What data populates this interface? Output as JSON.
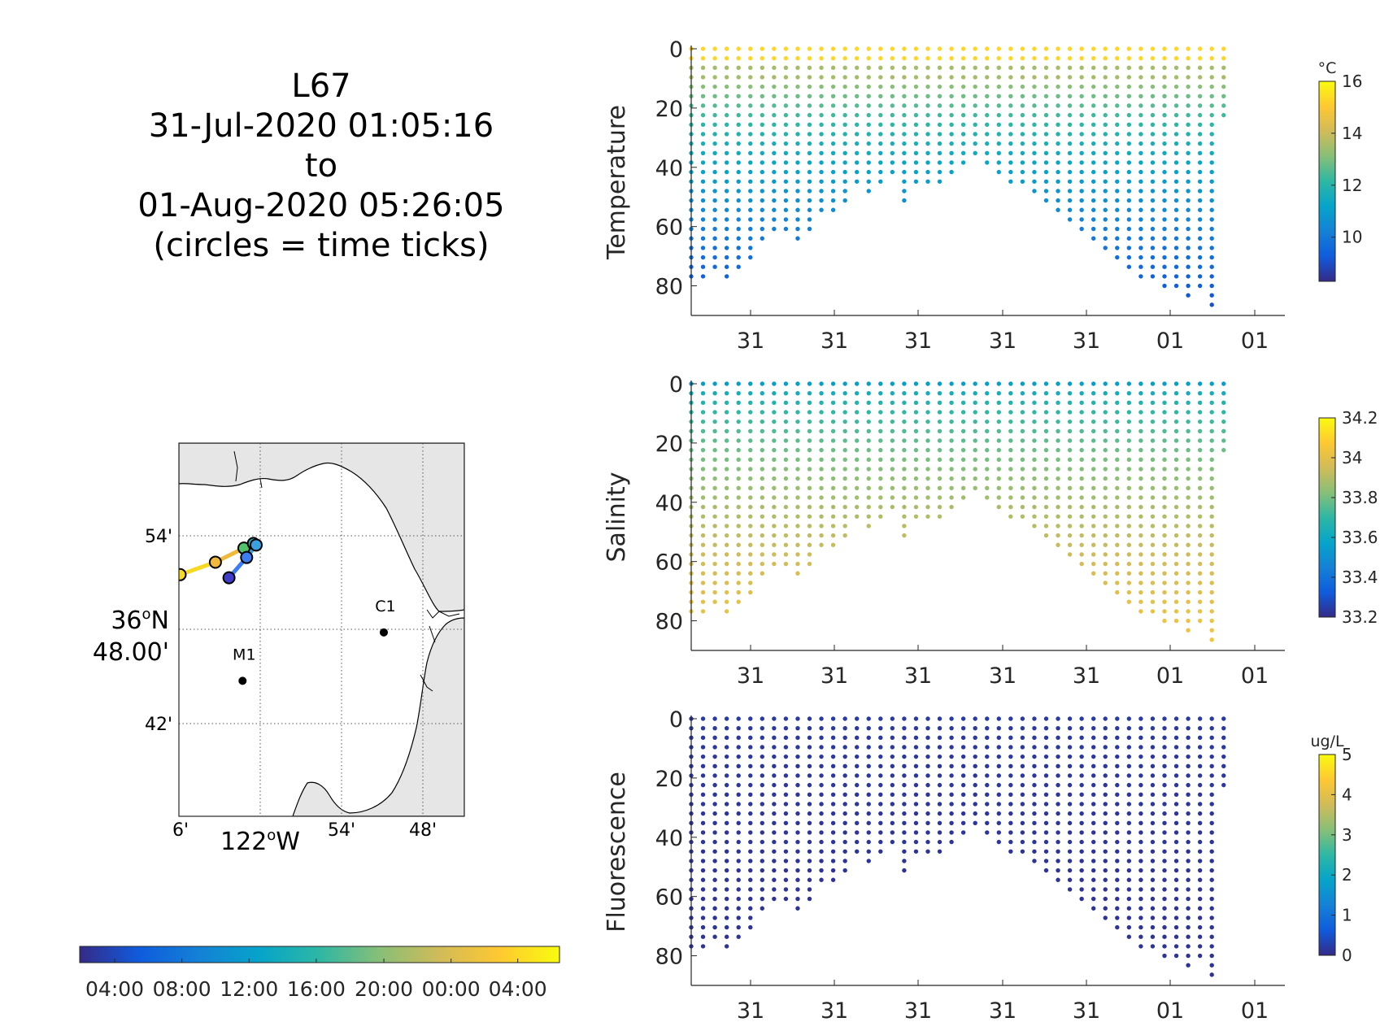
{
  "title": {
    "lines": [
      "L67",
      "31-Jul-2020 01:05:16",
      "to",
      "01-Aug-2020 05:26:05",
      "(circles = time ticks)"
    ]
  },
  "map": {
    "lat_labels": [
      "54'",
      "48.00'",
      "42'"
    ],
    "lat_main": "36",
    "lat_deg_sup": "o",
    "lat_hem": "N",
    "lon_labels": [
      "6'",
      "54'",
      "48'"
    ],
    "lon_main": "122",
    "lon_deg_sup": "o",
    "lon_hem": "W",
    "stations": [
      {
        "name": "C1",
        "lon_min": -50.9,
        "lat_min": 47.8
      },
      {
        "name": "M1",
        "lon_min": -61.3,
        "lat_min": 44.7
      }
    ],
    "track_ticks": [
      {
        "lon_min": -65.9,
        "lat_min": 51.5,
        "color": "#f6da22"
      },
      {
        "lon_min": -63.3,
        "lat_min": 52.3,
        "color": "#f0b93a"
      },
      {
        "lon_min": -61.2,
        "lat_min": 53.2,
        "color": "#54c26a"
      },
      {
        "lon_min": -60.5,
        "lat_min": 53.5,
        "color": "#1fb0c0"
      },
      {
        "lon_min": -60.3,
        "lat_min": 53.4,
        "color": "#3aa0e0"
      },
      {
        "lon_min": -61.0,
        "lat_min": 52.6,
        "color": "#3d7df2"
      },
      {
        "lon_min": -62.3,
        "lat_min": 51.3,
        "color": "#3f3dc8"
      }
    ]
  },
  "time_colorbar": {
    "tick_labels": [
      "04:00",
      "08:00",
      "12:00",
      "16:00",
      "20:00",
      "00:00",
      "04:00"
    ],
    "tick_fracs": [
      0.073,
      0.213,
      0.353,
      0.493,
      0.634,
      0.774,
      0.913
    ]
  },
  "chart_data": [
    {
      "type": "scatter",
      "ylabel": "Temperature",
      "unit": "°C",
      "ylim": [
        0,
        90
      ],
      "y_reversed": true,
      "y_ticks": [
        0,
        20,
        40,
        60,
        80
      ],
      "x_tick_labels": [
        "31",
        "31",
        "31",
        "31",
        "31",
        "01",
        "01"
      ],
      "colorbar": {
        "range": [
          8.3,
          16.0
        ],
        "ticks": [
          "10",
          "12",
          "14",
          "16"
        ],
        "tick_values": [
          10,
          12,
          14,
          16
        ]
      },
      "profile_max_depths": [
        79,
        77,
        75,
        79,
        76,
        71,
        67,
        63,
        63,
        66,
        62,
        57,
        55,
        52,
        48,
        51,
        47,
        43,
        52,
        46,
        45,
        45,
        43,
        40,
        38,
        40,
        44,
        46,
        47,
        49,
        52,
        56,
        58,
        63,
        66,
        69,
        72,
        74,
        78,
        80,
        81,
        83,
        85,
        83,
        87,
        25
      ],
      "surface_value": 15.3,
      "deep_value": 9.0
    },
    {
      "type": "scatter",
      "ylabel": "Salinity",
      "unit": "",
      "ylim": [
        0,
        90
      ],
      "y_reversed": true,
      "y_ticks": [
        0,
        20,
        40,
        60,
        80
      ],
      "x_tick_labels": [
        "31",
        "31",
        "31",
        "31",
        "31",
        "01",
        "01"
      ],
      "colorbar": {
        "range": [
          33.2,
          34.2
        ],
        "ticks": [
          "34.2",
          "34",
          "33.8",
          "33.6",
          "33.4",
          "33.2"
        ],
        "tick_values": [
          34.2,
          34.0,
          33.8,
          33.6,
          33.4,
          33.2
        ]
      },
      "profile_max_depths": [
        79,
        77,
        75,
        79,
        76,
        71,
        67,
        63,
        63,
        66,
        62,
        57,
        55,
        52,
        48,
        51,
        47,
        43,
        52,
        46,
        45,
        45,
        43,
        40,
        38,
        40,
        44,
        46,
        47,
        49,
        52,
        56,
        58,
        63,
        66,
        69,
        72,
        74,
        78,
        80,
        81,
        83,
        85,
        83,
        87,
        25
      ],
      "surface_value": 33.55,
      "deep_value": 34.05
    },
    {
      "type": "scatter",
      "ylabel": "Fluorescence",
      "unit": "ug/L",
      "ylim": [
        0,
        90
      ],
      "y_reversed": true,
      "y_ticks": [
        0,
        20,
        40,
        60,
        80
      ],
      "x_tick_labels": [
        "31",
        "31",
        "31",
        "31",
        "31",
        "01",
        "01"
      ],
      "colorbar": {
        "range": [
          0,
          5
        ],
        "ticks": [
          "0",
          "1",
          "2",
          "3",
          "4",
          "5"
        ],
        "tick_values": [
          0,
          1,
          2,
          3,
          4,
          5
        ]
      },
      "profile_max_depths": [
        79,
        77,
        75,
        79,
        76,
        71,
        67,
        63,
        63,
        66,
        62,
        57,
        55,
        52,
        48,
        51,
        47,
        43,
        52,
        46,
        45,
        45,
        43,
        40,
        38,
        40,
        44,
        46,
        47,
        49,
        52,
        56,
        58,
        63,
        66,
        69,
        72,
        74,
        78,
        80,
        81,
        83,
        85,
        83,
        87,
        25
      ],
      "surface_value": 0.2,
      "deep_value": 0.1
    }
  ],
  "colors": {
    "land": "#e6e6e6",
    "axis": "#262626",
    "parula": [
      "#352a87",
      "#0f5cdd",
      "#1481d6",
      "#06a4ca",
      "#2eb7a4",
      "#87bf77",
      "#d1bb59",
      "#fec832",
      "#f9fb0e"
    ]
  }
}
